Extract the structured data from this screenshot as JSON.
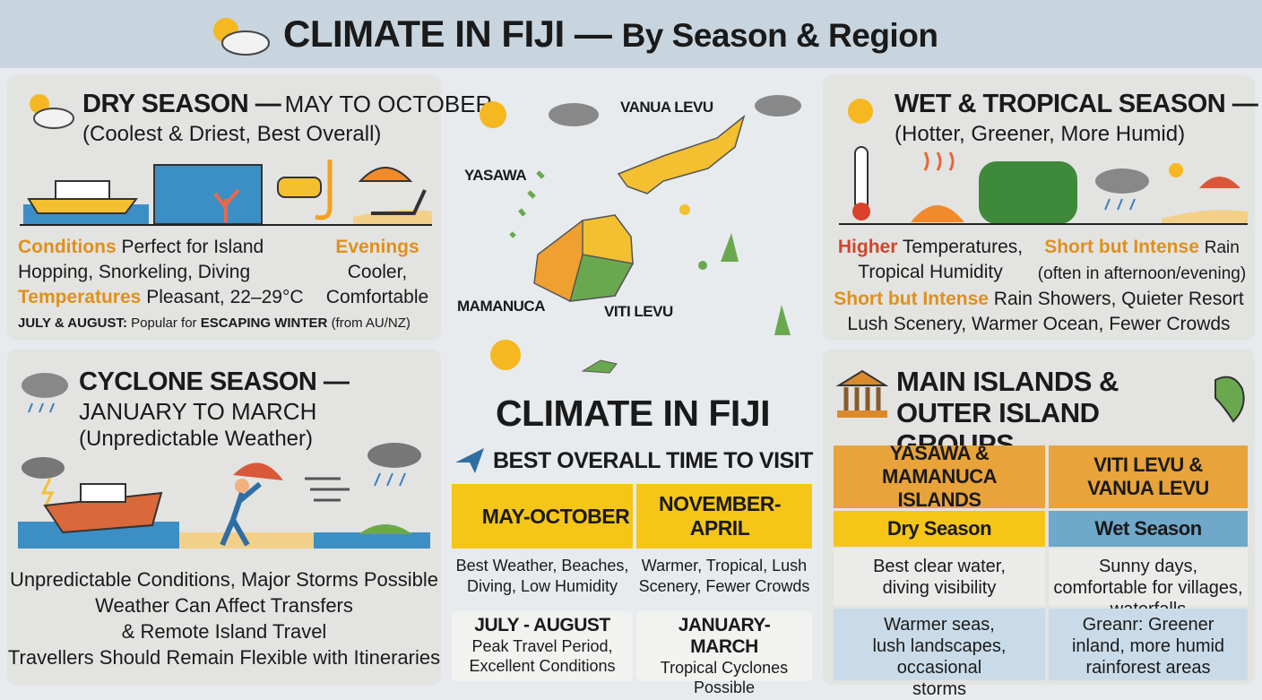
{
  "header": {
    "title_main": "CLIMATE IN FIJI —",
    "title_sub": "By Season & Region"
  },
  "dry_season": {
    "heading": "DRY SEASON —",
    "dates": "MAY TO OCTOBER",
    "subtitle": "(Coolest & Driest, Best Overall)",
    "conditions_label": "Conditions",
    "conditions_text": "Perfect for Island Hopping, Snorkeling, Diving",
    "temperatures_label": "Temperatures",
    "temperatures_text": "Pleasant, 22–29°C",
    "evenings_label": "Evenings",
    "evenings_text": "Cooler, Comfortable",
    "note_label": "JULY & AUGUST:",
    "note_text": "Popular for",
    "note_bold": "ESCAPING WINTER",
    "note_end": "(from AU/NZ)"
  },
  "cyclone_season": {
    "heading": "CYCLONE SEASON —",
    "dates": "JANUARY TO MARCH",
    "subtitle": "(Unpredictable Weather)",
    "lines": [
      "Unpredictable Conditions, Major Storms Possible",
      "Weather Can Affect Transfers",
      "& Remote Island Travel",
      "Travellers Should Remain Flexible with Itineraries"
    ]
  },
  "map": {
    "labels": [
      "VANUA LEVU",
      "YASAWA",
      "MAMANUCA",
      "VITI LEVU"
    ]
  },
  "center": {
    "title": "CLIMATE IN FIJI",
    "best_time": "BEST OVERALL TIME TO VISIT",
    "cards": [
      {
        "heading": "MAY-OCTOBER",
        "text": "Best Weather, Beaches, Diving, Low Humidity"
      },
      {
        "heading": "NOVEMBER-APRIL",
        "text": "Warmer, Tropical, Lush Scenery, Fewer Crowds"
      },
      {
        "heading": "JULY - AUGUST",
        "text": "Peak Travel Period, Excellent Conditions"
      },
      {
        "heading": "JANUARY-MARCH",
        "text": "Tropical Cyclones Possible"
      }
    ]
  },
  "wet_season": {
    "heading": "WET & TROPICAL SEASON —",
    "subtitle": "(Hotter, Greener, More Humid)",
    "line1_label": "Higher",
    "line1_text": "Temperatures, Tropical Humidity",
    "line2_label": "Short but Intense",
    "line2_text": "Rain (often in afternoon/evening)",
    "line3_label": "Short but Intense",
    "line3_text": "Rain Showers, Quieter Resort",
    "line4_text": "Lush Scenery, Warmer Ocean, Fewer Crowds"
  },
  "islands": {
    "heading": "MAIN ISLANDS & OUTER ISLAND GROUPS",
    "columns": [
      {
        "name": "YASAWA & MAMANUCA ISLANDS",
        "season": "Dry Season",
        "row1": "Best clear water, diving visibility",
        "row2": "Warmer seas, lush landscapes, occasional storms"
      },
      {
        "name": "VITI LEVU & VANUA LEVU",
        "season": "Wet Season",
        "row1": "Sunny days, comfortable for villages, waterfalls",
        "row2": "Greanr: Greener inland, more humid rainforest areas"
      }
    ]
  }
}
